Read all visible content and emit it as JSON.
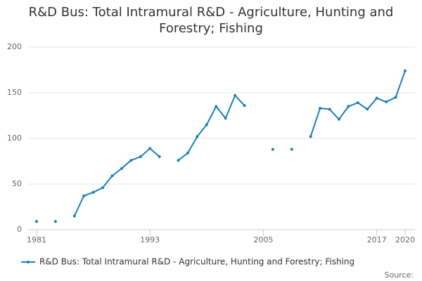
{
  "chart_data": {
    "type": "line",
    "title": "R&D Bus: Total Intramural R&D - Agriculture, Hunting and Forestry; Fishing",
    "x": [
      1981,
      1982,
      1983,
      1984,
      1985,
      1986,
      1987,
      1988,
      1989,
      1990,
      1991,
      1992,
      1993,
      1994,
      1995,
      1996,
      1997,
      1998,
      1999,
      2000,
      2001,
      2002,
      2003,
      2004,
      2005,
      2006,
      2007,
      2008,
      2009,
      2010,
      2011,
      2012,
      2013,
      2014,
      2015,
      2016,
      2017,
      2018,
      2019,
      2020
    ],
    "series": [
      {
        "name": "R&D Bus: Total Intramural R&D - Agriculture, Hunting and Forestry; Fishing",
        "color": "#1a7fb8",
        "values": [
          9,
          null,
          9,
          null,
          15,
          37,
          41,
          46,
          59,
          67,
          76,
          80,
          89,
          80,
          null,
          76,
          84,
          102,
          115,
          135,
          122,
          147,
          136,
          null,
          null,
          88,
          null,
          88,
          null,
          102,
          133,
          132,
          121,
          135,
          139,
          132,
          144,
          140,
          145,
          174
        ]
      }
    ],
    "xlim": [
      1981,
      2020
    ],
    "xticks": [
      1981,
      1993,
      2005,
      2017,
      2020
    ],
    "ylim": [
      0,
      200
    ],
    "yticks": [
      0,
      50,
      100,
      150,
      200
    ],
    "grid": true,
    "source": "Source:"
  }
}
